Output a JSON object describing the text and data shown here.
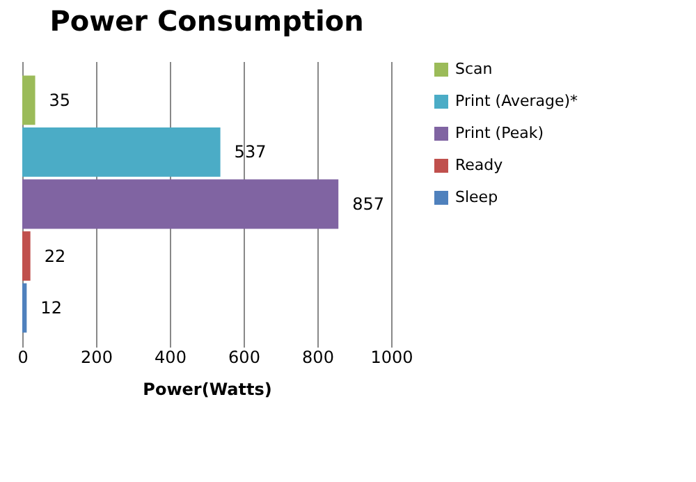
{
  "chart_data": {
    "type": "bar",
    "orientation": "horizontal",
    "title": "Power Consumption",
    "xlabel": "Power(Watts)",
    "categories": [
      null
    ],
    "series": [
      {
        "name": "Scan",
        "color": "#9bbb59",
        "values": [
          35
        ]
      },
      {
        "name": "Print (Average)*",
        "color": "#4bacc6",
        "values": [
          537
        ]
      },
      {
        "name": "Print (Peak)",
        "color": "#8064a2",
        "values": [
          857
        ]
      },
      {
        "name": "Ready",
        "color": "#c0504d",
        "values": [
          22
        ]
      },
      {
        "name": "Sleep",
        "color": "#4f81bd",
        "values": [
          12
        ]
      }
    ],
    "xlim": [
      0,
      1000
    ],
    "xticks": [
      0,
      200,
      400,
      600,
      800,
      1000
    ],
    "grid": "x",
    "legend": "right",
    "tick_labels": "x",
    "data_labels": true
  }
}
